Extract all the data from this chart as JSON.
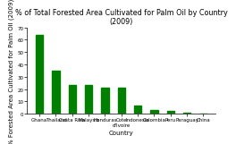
{
  "title": "% of Total Forested Area Cultivated for Palm Oil by Country\n(2009)",
  "xlabel": "Country",
  "ylabel": "% Forested Area Cultivated for Palm Oil (2009)",
  "categories": [
    "Ghana",
    "Thailand",
    "Costa Rica",
    "Malaysia",
    "Honduras",
    "Cote\nd'Ivoire",
    "Indonesia",
    "Colombia",
    "Peru",
    "Paraguay",
    "China"
  ],
  "values": [
    64,
    35,
    23.5,
    23,
    21.5,
    21,
    6.5,
    3,
    2,
    1,
    0.5
  ],
  "bar_color": "#008000",
  "ylim": [
    0,
    70
  ],
  "yticks": [
    0,
    10,
    20,
    30,
    40,
    50,
    60,
    70
  ],
  "background_color": "#ffffff",
  "title_fontsize": 5.8,
  "axis_label_fontsize": 5.0,
  "tick_fontsize": 4.0,
  "bar_width": 0.45
}
